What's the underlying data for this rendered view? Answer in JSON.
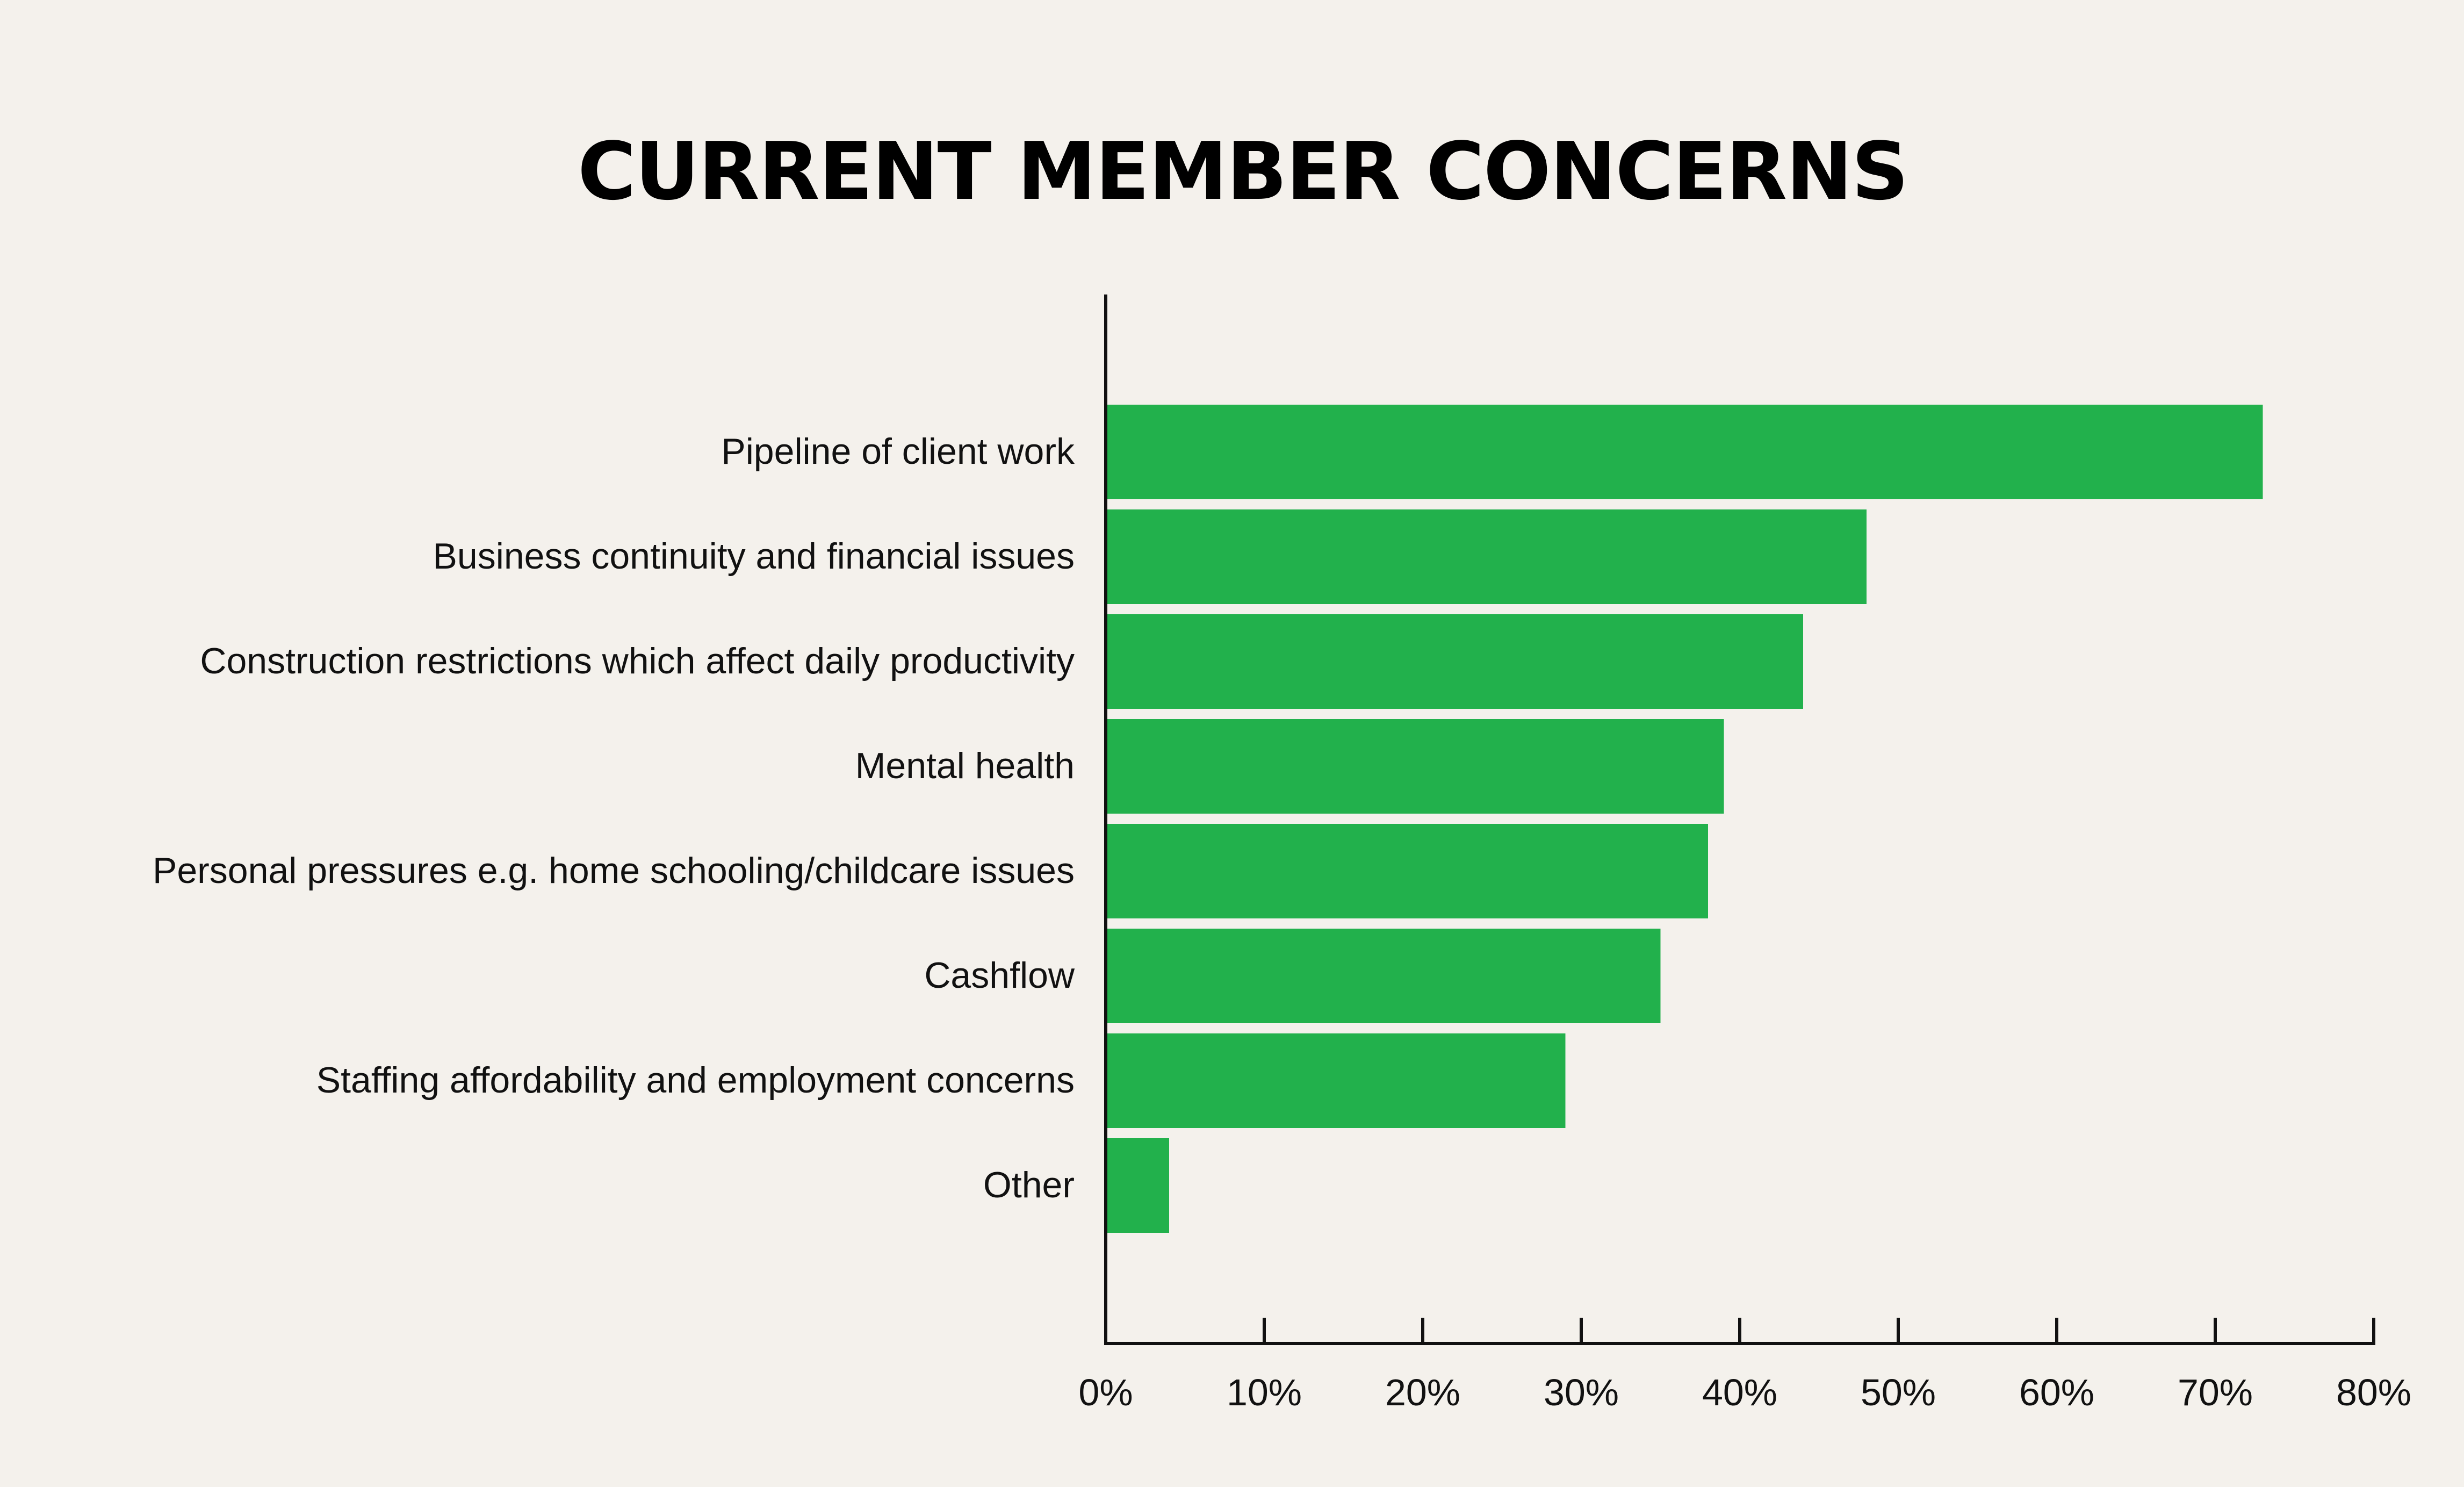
{
  "colors": {
    "background": "#f4f1ec",
    "bar": "#22b14c",
    "axis": "#111111",
    "text": "#111111"
  },
  "chart_data": {
    "type": "bar",
    "orientation": "horizontal",
    "title": "CURRENT MEMBER CONCERNS",
    "xlabel": "",
    "ylabel": "",
    "categories": [
      "Pipeline of client work",
      "Business continuity and financial issues",
      "Construction restrictions which affect daily productivity",
      "Mental health",
      "Personal pressures e.g. home schooling/childcare issues",
      "Cashflow",
      "Staffing affordability and employment concerns",
      "Other"
    ],
    "values": [
      73,
      48,
      44,
      39,
      38,
      35,
      29,
      4
    ],
    "unit": "%",
    "xlim": [
      0,
      80
    ],
    "xticks": [
      0,
      10,
      20,
      30,
      40,
      50,
      60,
      70,
      80
    ],
    "xtick_labels": [
      "0%",
      "10%",
      "20%",
      "30%",
      "40%",
      "50%",
      "60%",
      "70%",
      "80%"
    ],
    "grid": false,
    "legend": "none"
  }
}
